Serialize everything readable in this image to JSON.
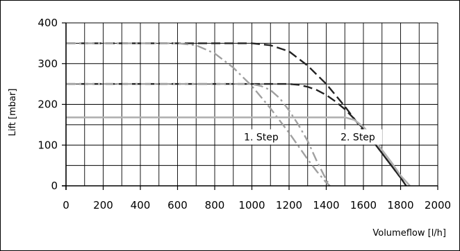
{
  "chart_data": {
    "type": "line",
    "title": "",
    "xlabel": "Volumeflow [l/h]",
    "ylabel": "Lift [mbar]",
    "xlim": [
      0,
      2000
    ],
    "ylim": [
      0,
      400
    ],
    "x_ticks": [
      0,
      200,
      400,
      600,
      800,
      1000,
      1200,
      1400,
      1600,
      1800,
      2000
    ],
    "y_ticks": [
      0,
      100,
      200,
      300,
      400
    ],
    "grid": true,
    "annotations": [
      {
        "text": "1. Step",
        "x": 1050,
        "y": 120
      },
      {
        "text": "2. Step",
        "x": 1570,
        "y": 120
      }
    ],
    "series": [
      {
        "style": "dashed",
        "color": "#222222",
        "x": [
          0,
          600,
          700,
          800,
          900,
          1000,
          1100,
          1200,
          1300,
          1400,
          1500,
          1550,
          1600,
          1650,
          1700,
          1750,
          1800,
          1830
        ],
        "y": [
          350,
          350,
          350,
          350,
          350,
          350,
          345,
          330,
          295,
          250,
          195,
          165,
          135,
          110,
          80,
          50,
          20,
          0
        ]
      },
      {
        "style": "dashed",
        "color": "#222222",
        "x": [
          0,
          1000,
          1100,
          1200,
          1250,
          1300,
          1350,
          1400,
          1450,
          1500,
          1550,
          1600,
          1650,
          1700,
          1750,
          1800,
          1830
        ],
        "y": [
          250,
          250,
          250,
          250,
          248,
          243,
          235,
          223,
          207,
          188,
          165,
          140,
          110,
          80,
          50,
          20,
          0
        ]
      },
      {
        "style": "dash-dot",
        "color": "#a0a0a0",
        "x": [
          0,
          600,
          700,
          800,
          900,
          1000,
          1100,
          1200,
          1300,
          1350,
          1400,
          1420
        ],
        "y": [
          350,
          350,
          345,
          325,
          290,
          245,
          190,
          130,
          65,
          35,
          8,
          0
        ]
      },
      {
        "style": "dash-dot",
        "color": "#a0a0a0",
        "x": [
          0,
          1000,
          1050,
          1100,
          1150,
          1200,
          1250,
          1300,
          1350,
          1400,
          1420
        ],
        "y": [
          250,
          250,
          245,
          235,
          215,
          185,
          150,
          110,
          60,
          15,
          0
        ]
      },
      {
        "style": "solid",
        "color": "#b0b0b0",
        "x": [
          0,
          1400,
          1500,
          1550,
          1600,
          1650,
          1700,
          1750,
          1800,
          1850
        ],
        "y": [
          168,
          168,
          168,
          162,
          145,
          118,
          88,
          58,
          25,
          0
        ]
      }
    ]
  }
}
